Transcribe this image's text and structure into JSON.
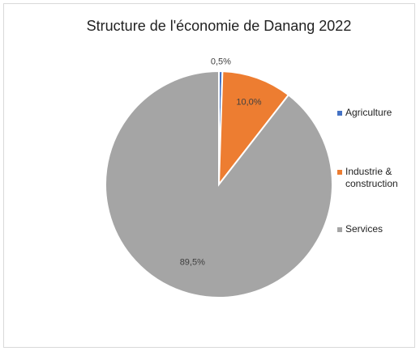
{
  "chart_data": {
    "type": "pie",
    "title": "Structure de l'économie de Danang 2022",
    "categories": [
      "Agriculture",
      "Industrie & construction",
      "Services"
    ],
    "values": [
      0.5,
      10.0,
      89.5
    ],
    "data_labels": [
      "0,5%",
      "10,0%",
      "89,5%"
    ],
    "colors": [
      "#4472C4",
      "#ED7D31",
      "#A5A5A5"
    ],
    "legend_position": "right",
    "legend": [
      {
        "lines": [
          "Agriculture"
        ],
        "color": "#4472C4"
      },
      {
        "lines": [
          "Industrie &",
          "construction"
        ],
        "color": "#ED7D31"
      },
      {
        "lines": [
          "Services"
        ],
        "color": "#A5A5A5"
      }
    ]
  }
}
